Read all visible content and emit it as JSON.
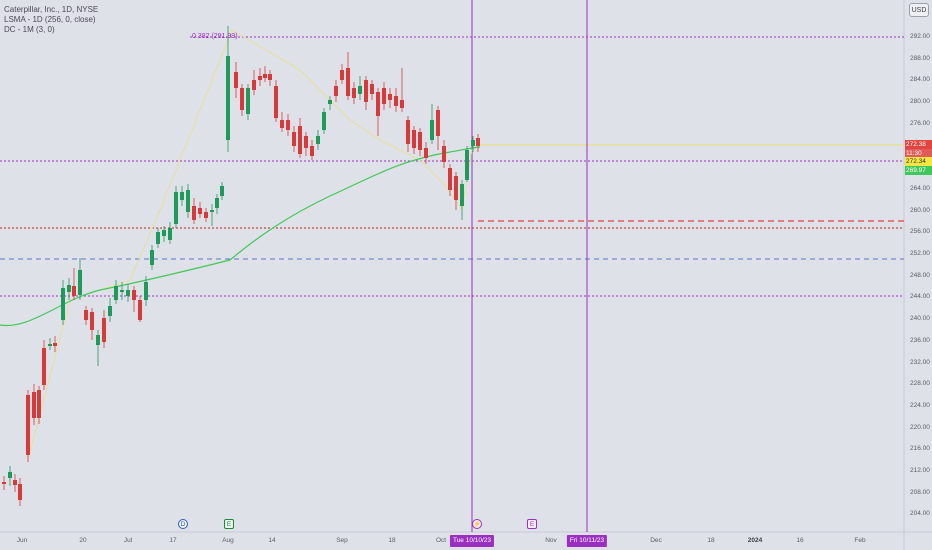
{
  "legend": {
    "symbol_line": "Caterpillar, Inc., 1D, NYSE",
    "indicator_1": "LSMA - 1D (256, 0, close)",
    "indicator_2": "DC - 1M (3, 0)"
  },
  "currency_button": "USD",
  "fib_label": "0.382 (291.99)",
  "price_axis": {
    "ticks": [
      "292.00",
      "288.00",
      "284.00",
      "280.00",
      "276.00",
      "272.00",
      "268.00",
      "264.00",
      "260.00",
      "256.00",
      "252.00",
      "248.00",
      "244.00",
      "240.00",
      "236.00",
      "232.00",
      "228.00",
      "224.00",
      "220.00",
      "216.00",
      "212.00",
      "208.00",
      "204.00"
    ]
  },
  "price_labels": {
    "current_price": "272.38",
    "countdown": "11:30",
    "lsma_value": "272.34",
    "dc_value": "269.97"
  },
  "time_axis": {
    "ticks": [
      "Jun",
      "20",
      "Jul",
      "17",
      "Aug",
      "14",
      "Sep",
      "18",
      "Oct",
      "6",
      "Nov",
      "Dec",
      "18",
      "2024",
      "16",
      "Feb"
    ],
    "cursor_label": "Tue 10/10/23",
    "marker_label": "Fri 10/11/23"
  },
  "events": {
    "dividend": "D",
    "earnings_1": "E",
    "split_flash": "⚡",
    "earnings_2": "E"
  },
  "colors": {
    "up": "#1f9a5a",
    "down": "#d63b3b",
    "lsma": "#41c85a",
    "fib": "#9b2fc2",
    "dc_upper": "#f0e070",
    "red_dashed": "#e0453f",
    "blue_dashed": "#5978c5"
  }
}
